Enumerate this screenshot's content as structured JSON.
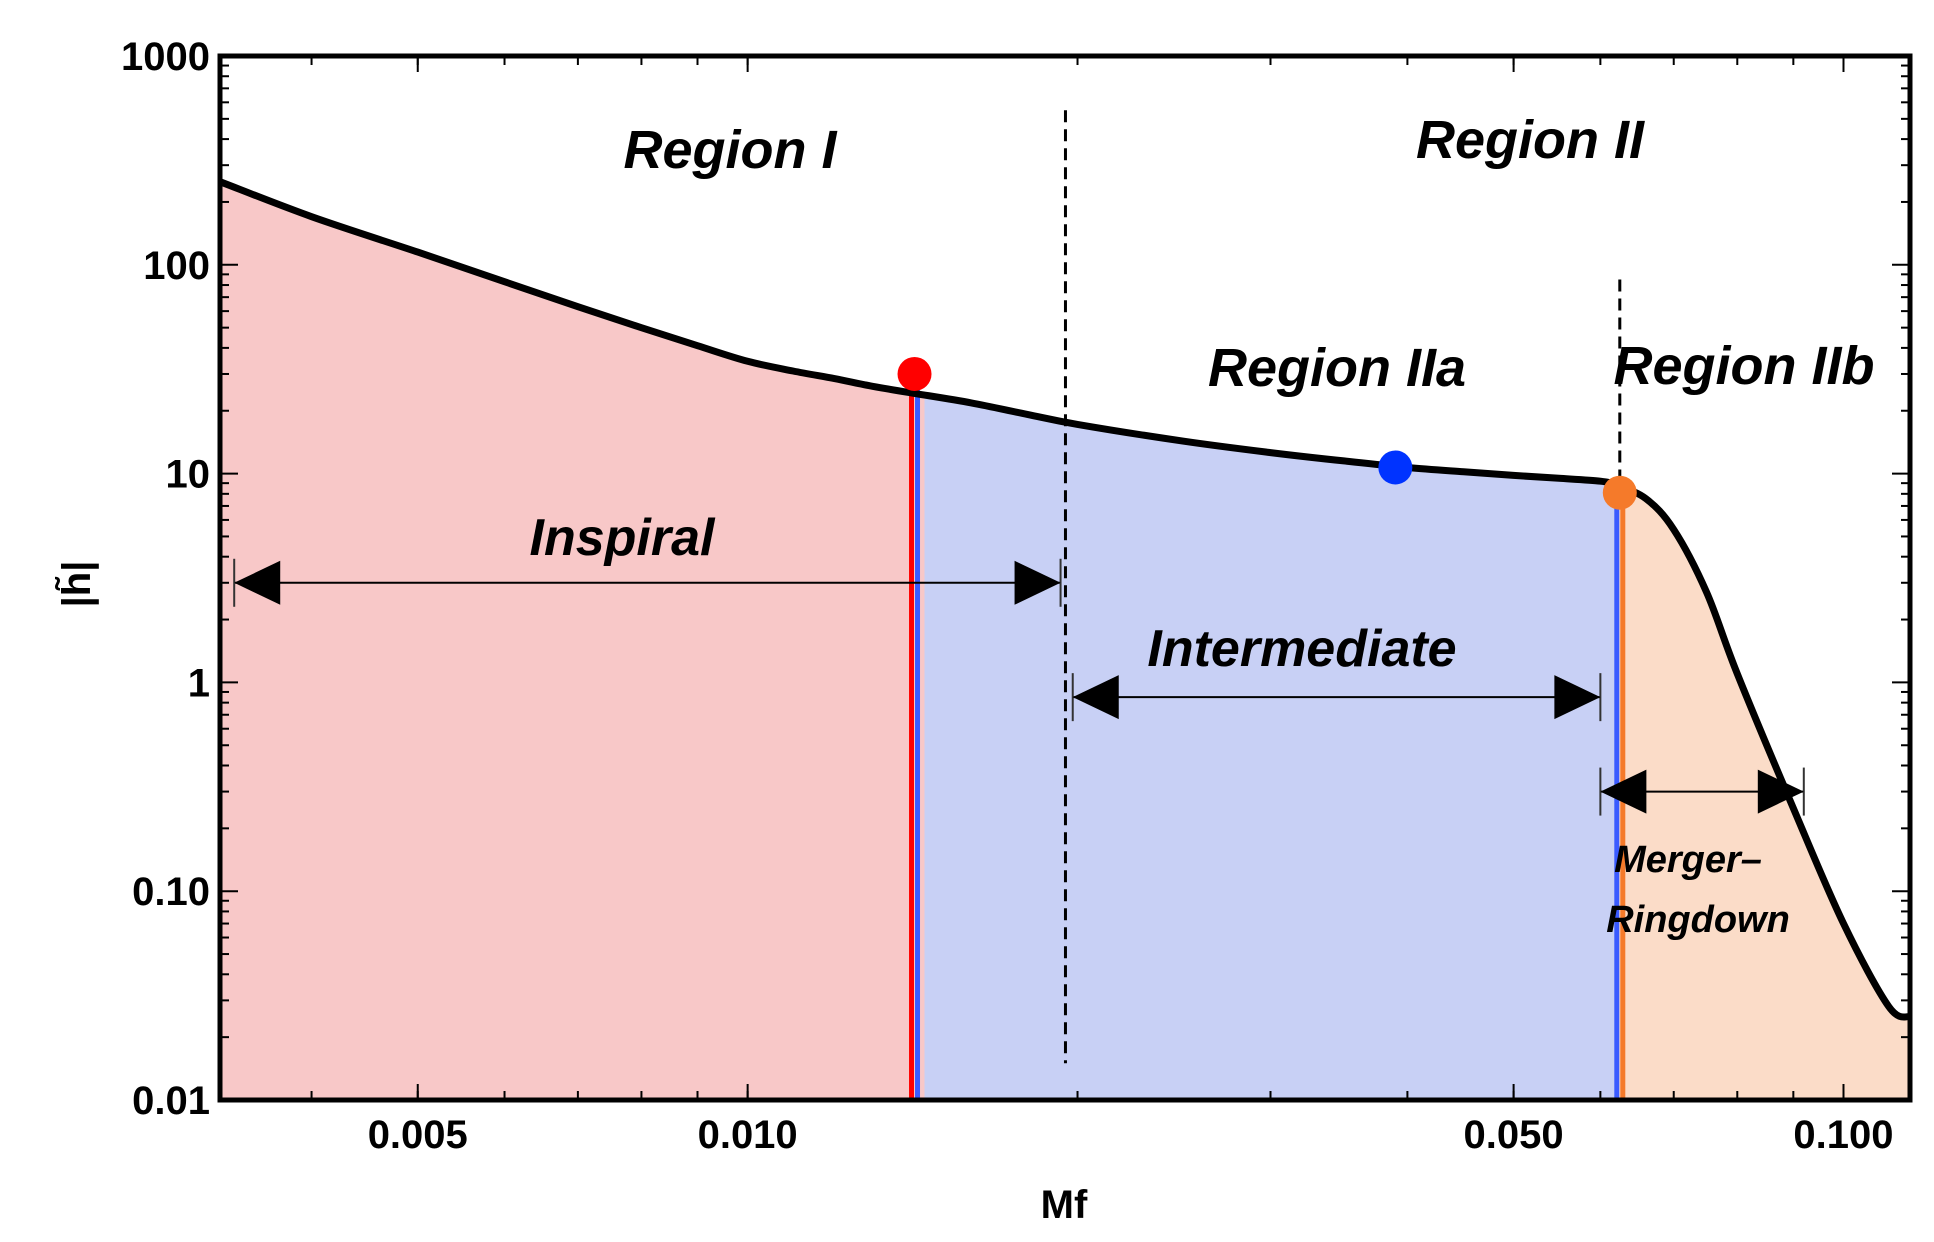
{
  "chart_data": {
    "type": "area",
    "xlabel": "Mf",
    "ylabel": "|h̃|",
    "x_scale": "log",
    "y_scale": "log",
    "xlim": [
      0.0033,
      0.115
    ],
    "ylim": [
      0.01,
      1000
    ],
    "x_ticks": [
      {
        "value": 0.005,
        "label": "0.005"
      },
      {
        "value": 0.01,
        "label": "0.010"
      },
      {
        "value": 0.05,
        "label": "0.050"
      },
      {
        "value": 0.1,
        "label": "0.100"
      }
    ],
    "y_ticks": [
      {
        "value": 0.01,
        "label": "0.01"
      },
      {
        "value": 0.1,
        "label": "0.10"
      },
      {
        "value": 1,
        "label": "1"
      },
      {
        "value": 10,
        "label": "10"
      },
      {
        "value": 100,
        "label": "100"
      },
      {
        "value": 1000,
        "label": "1000"
      }
    ],
    "grid": false,
    "curve": {
      "x": [
        0.0033,
        0.004,
        0.005,
        0.006,
        0.007,
        0.008,
        0.009,
        0.01,
        0.011,
        0.012,
        0.013,
        0.014,
        0.016,
        0.018,
        0.02,
        0.025,
        0.03,
        0.035,
        0.04,
        0.045,
        0.05,
        0.055,
        0.06,
        0.062,
        0.066,
        0.07,
        0.075,
        0.08,
        0.09,
        0.1,
        0.11,
        0.115
      ],
      "y": [
        250,
        170,
        115,
        83,
        63,
        50,
        41,
        34.5,
        31,
        28.5,
        26.2,
        24.5,
        21.8,
        19.2,
        17.2,
        14.3,
        12.6,
        11.5,
        10.7,
        10.2,
        9.8,
        9.5,
        9.2,
        8.8,
        7.6,
        5.4,
        2.7,
        1.1,
        0.25,
        0.07,
        0.028,
        0.025
      ]
    },
    "regions": [
      {
        "name": "Region I",
        "x_from": 0.0033,
        "x_to": 0.0195
      },
      {
        "name": "Region II",
        "x_from": 0.0195,
        "x_to": 0.115
      },
      {
        "name": "Region IIa",
        "x_from": 0.0195,
        "x_to": 0.062
      },
      {
        "name": "Region IIb",
        "x_from": 0.062,
        "x_to": 0.115
      }
    ],
    "shaded_bands": [
      {
        "phase": "Inspiral",
        "x_from": 0.0033,
        "x_to": 0.0145,
        "color": "#f8c8c8"
      },
      {
        "phase": "Intermediate",
        "x_from": 0.0145,
        "x_to": 0.062,
        "color": "#c8d0f5"
      },
      {
        "phase": "Merger-Ringdown",
        "x_from": 0.062,
        "x_to": 0.115,
        "color": "#fbdcc8"
      }
    ],
    "markers": [
      {
        "x": 0.0142,
        "y": 30,
        "color": "#ff0000"
      },
      {
        "x": 0.039,
        "y": 10.7,
        "color": "#0033ff"
      },
      {
        "x": 0.0625,
        "y": 8.1,
        "color": "#f57a2a"
      }
    ],
    "dashed_lines": [
      {
        "x": 0.0195,
        "y_from": 0.015,
        "y_to": 550
      },
      {
        "x": 0.0625,
        "y_from": 7.5,
        "y_to": 85
      }
    ],
    "arrows": [
      {
        "label": "Inspiral",
        "x_from": 0.0034,
        "x_to": 0.0193,
        "y": 3
      },
      {
        "label": "Intermediate",
        "x_from": 0.0198,
        "x_to": 0.06,
        "y": 0.85
      },
      {
        "label": "Merger– Ringdown",
        "x_from": 0.06,
        "x_to": 0.092,
        "y": 0.3
      }
    ],
    "annotations": {
      "region_1": "Region I",
      "region_2": "Region II",
      "region_2a": "Region IIa",
      "region_2b": "Region IIb",
      "inspiral": "Inspiral",
      "intermediate": "Intermediate",
      "merger_line1": "Merger–",
      "merger_line2": "Ringdown"
    }
  }
}
